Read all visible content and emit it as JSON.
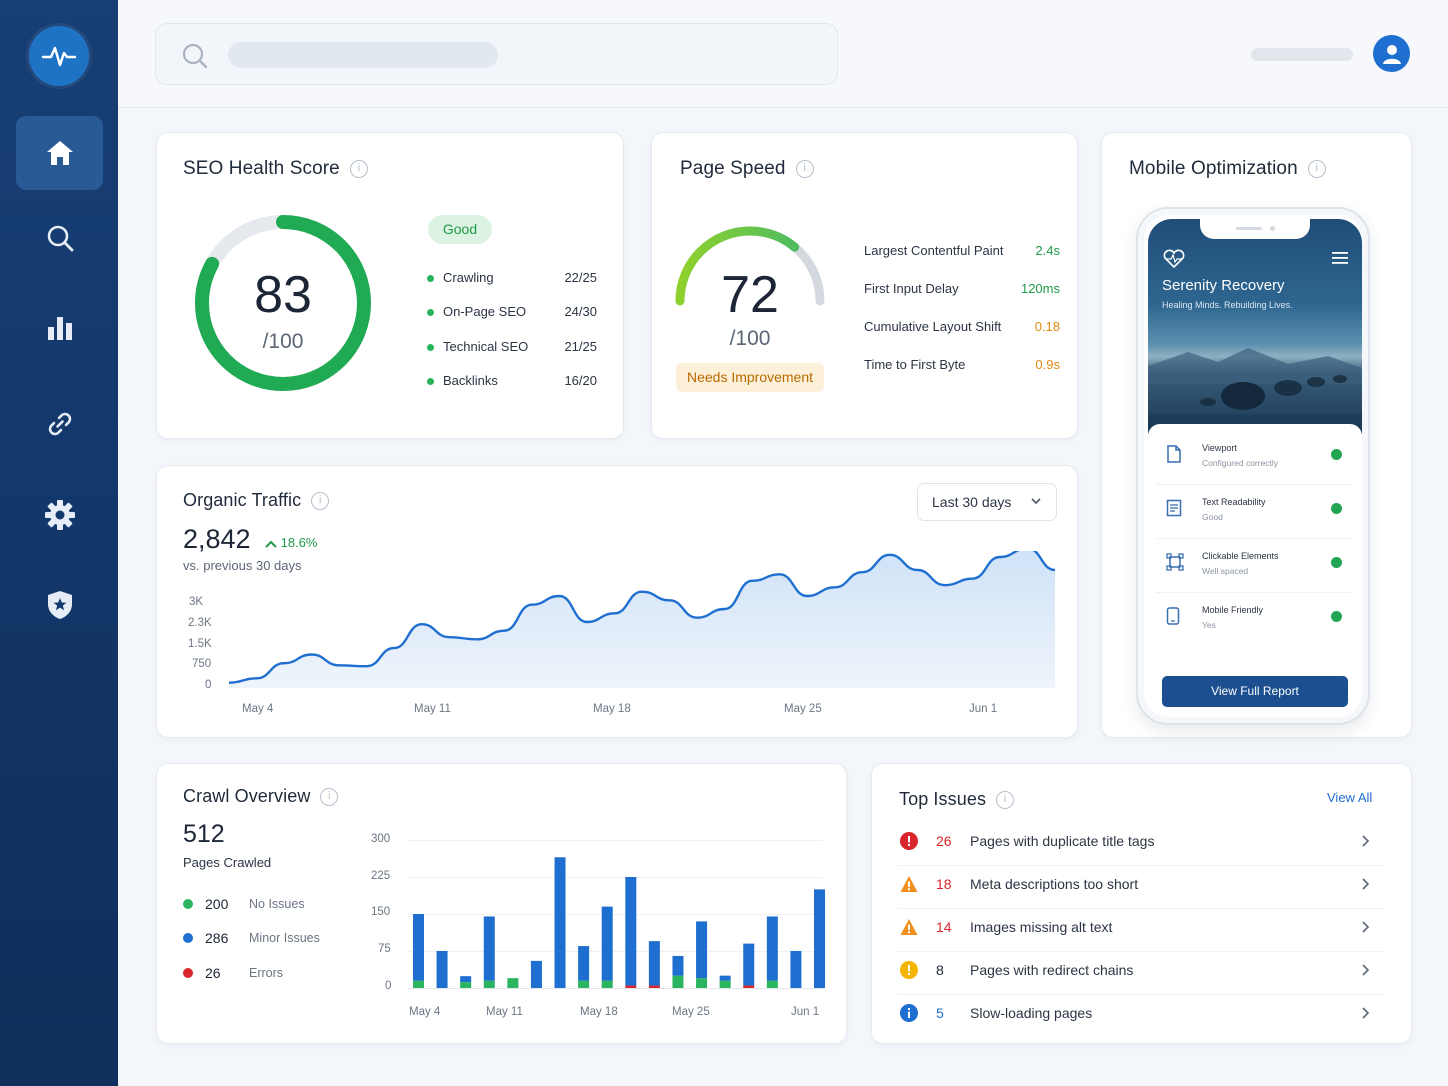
{
  "colors": {
    "sidebar": "#143a6c",
    "accent_blue": "#1f6fd1",
    "good_green": "#22a552",
    "warning_orange": "#f0901e",
    "error_red": "#d9262c",
    "amber": "#f4b400"
  },
  "sidebar": {
    "logo_icon": "pulse-icon",
    "items": [
      {
        "icon": "home-icon",
        "active": true
      },
      {
        "icon": "search-icon",
        "active": false
      },
      {
        "icon": "bar-chart-icon",
        "active": false
      },
      {
        "icon": "link-icon",
        "active": false
      },
      {
        "icon": "gear-icon",
        "active": false
      },
      {
        "icon": "shield-icon",
        "active": false
      }
    ]
  },
  "seo_health": {
    "title": "SEO Health Score",
    "score": "83",
    "score_of": "/100",
    "score_fraction": 0.83,
    "badge": "Good",
    "metrics": [
      {
        "label": "Crawling",
        "value": "22/25"
      },
      {
        "label": "On-Page SEO",
        "value": "24/30"
      },
      {
        "label": "Technical SEO",
        "value": "21/25"
      },
      {
        "label": "Backlinks",
        "value": "16/20"
      }
    ]
  },
  "page_speed": {
    "title": "Page Speed",
    "score": "72",
    "score_of": "/100",
    "score_fraction": 0.72,
    "badge": "Needs Improvement",
    "metrics": [
      {
        "label": "Largest Contentful Paint",
        "value": "2.4s",
        "status": "good"
      },
      {
        "label": "First Input Delay",
        "value": "120ms",
        "status": "good"
      },
      {
        "label": "Cumulative Layout Shift",
        "value": "0.18",
        "status": "warn"
      },
      {
        "label": "Time to First Byte",
        "value": "0.9s",
        "status": "warn"
      }
    ]
  },
  "mobile": {
    "title": "Mobile Optimization",
    "app_title": "Serenity Recovery",
    "app_subtitle": "Healing Minds. Rebuilding Lives.",
    "items": [
      {
        "title": "Viewport",
        "subtitle": "Configured correctly",
        "icon": "document-icon"
      },
      {
        "title": "Text Readability",
        "subtitle": "Good",
        "icon": "text-doc-icon"
      },
      {
        "title": "Clickable Elements",
        "subtitle": "Well spaced",
        "icon": "tap-target-icon"
      },
      {
        "title": "Mobile Friendly",
        "subtitle": "Yes",
        "icon": "phone-icon"
      }
    ],
    "button": "View Full Report"
  },
  "organic_traffic": {
    "title": "Organic Traffic",
    "value": "2,842",
    "delta": "18.6%",
    "comparison": "vs. previous 30 days",
    "range_select": "Last 30 days",
    "y_ticks": [
      "3K",
      "2.3K",
      "1.5K",
      "750",
      "0"
    ],
    "x_ticks": [
      "May 4",
      "May 11",
      "May 18",
      "May 25",
      "Jun 1"
    ]
  },
  "crawl": {
    "title": "Crawl Overview",
    "pages": "512",
    "pages_label": "Pages Crawled",
    "legend": [
      {
        "count": "200",
        "label": "No Issues",
        "color": "#2bb561"
      },
      {
        "count": "286",
        "label": "Minor Issues",
        "color": "#1f6fd1"
      },
      {
        "count": "26",
        "label": "Errors",
        "color": "#d9262c"
      }
    ],
    "y_ticks": [
      "300",
      "225",
      "150",
      "75",
      "0"
    ],
    "x_ticks": [
      "May 4",
      "May 11",
      "May 18",
      "May 25",
      "Jun 1"
    ]
  },
  "top_issues": {
    "title": "Top Issues",
    "view_all": "View All",
    "items": [
      {
        "count": "26",
        "text": "Pages with duplicate title tags",
        "severity": "error"
      },
      {
        "count": "18",
        "text": "Meta descriptions too short",
        "severity": "warning"
      },
      {
        "count": "14",
        "text": "Images missing alt text",
        "severity": "warning"
      },
      {
        "count": "8",
        "text": "Pages with redirect chains",
        "severity": "notice"
      },
      {
        "count": "5",
        "text": "Slow-loading pages",
        "severity": "info"
      }
    ]
  },
  "chart_data": [
    {
      "type": "area",
      "title": "Organic Traffic",
      "x": [
        "May 4",
        "May 5",
        "May 6",
        "May 7",
        "May 8",
        "May 9",
        "May 10",
        "May 11",
        "May 12",
        "May 13",
        "May 14",
        "May 15",
        "May 16",
        "May 17",
        "May 18",
        "May 19",
        "May 20",
        "May 21",
        "May 22",
        "May 23",
        "May 24",
        "May 25",
        "May 26",
        "May 27",
        "May 28",
        "May 29",
        "May 30",
        "May 31",
        "Jun 1",
        "Jun 2",
        "Jun 3"
      ],
      "series": [
        {
          "values": [
            100,
            200,
            550,
            750,
            500,
            480,
            900,
            1450,
            1150,
            1100,
            1300,
            1900,
            2100,
            1500,
            1700,
            2200,
            2000,
            1600,
            1800,
            2450,
            2600,
            2100,
            2300,
            2650,
            3050,
            2700,
            2350,
            2500,
            3000,
            3200,
            2700
          ]
        }
      ],
      "x_ticks": [
        "May 4",
        "May 11",
        "May 18",
        "May 25",
        "Jun 1"
      ],
      "ylim": [
        0,
        3000
      ],
      "y_ticks": [
        0,
        750,
        1500,
        2250,
        3000
      ]
    },
    {
      "type": "bar",
      "title": "Crawl Overview",
      "stacked": true,
      "categories": [
        "May 4",
        "May 5",
        "May 6",
        "May 8",
        "May 9",
        "May 11",
        "May 12",
        "May 13",
        "May 15",
        "May 18",
        "May 19",
        "May 20",
        "May 21",
        "May 22",
        "May 25",
        "May 26",
        "May 27",
        "Jun 1"
      ],
      "series": [
        {
          "name": "No Issues",
          "values": [
            15,
            0,
            12,
            15,
            20,
            0,
            0,
            15,
            15,
            0,
            0,
            25,
            20,
            15,
            0,
            15,
            0,
            0
          ]
        },
        {
          "name": "Minor Issues",
          "values": [
            135,
            75,
            12,
            130,
            0,
            55,
            265,
            70,
            150,
            220,
            90,
            40,
            115,
            10,
            85,
            130,
            75,
            200
          ]
        },
        {
          "name": "Errors",
          "values": [
            0,
            0,
            0,
            0,
            0,
            0,
            0,
            0,
            0,
            5,
            5,
            0,
            0,
            0,
            5,
            0,
            0,
            0
          ]
        }
      ],
      "x_ticks": [
        "May 4",
        "May 11",
        "May 18",
        "May 25",
        "Jun 1"
      ],
      "ylim": [
        0,
        300
      ],
      "y_ticks": [
        0,
        75,
        150,
        225,
        300
      ]
    }
  ]
}
